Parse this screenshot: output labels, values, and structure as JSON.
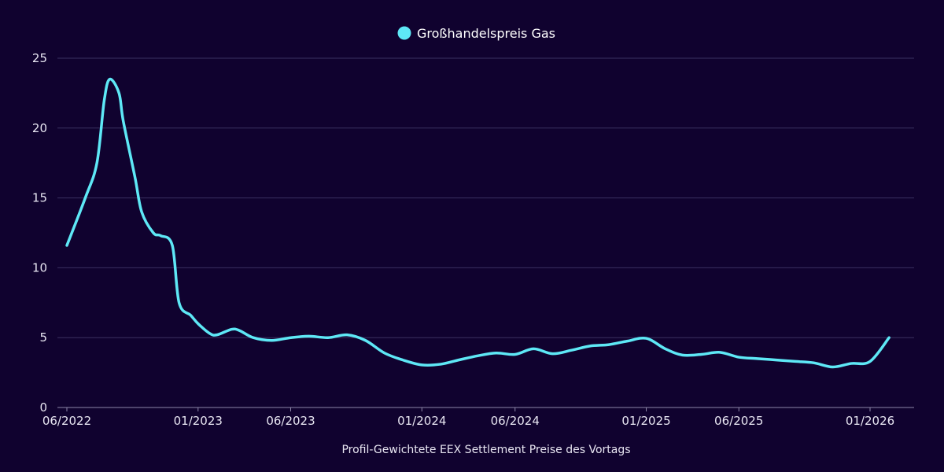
{
  "chart_data": {
    "type": "line",
    "title": "",
    "xlabel": "Profil-Gewichtete EEX Settlement Preise des Vortags",
    "ylabel": "",
    "ylim": [
      0,
      25
    ],
    "yticks": [
      0,
      5,
      10,
      15,
      20,
      25
    ],
    "xlim": [
      "2022-06",
      "2026-03"
    ],
    "xticks": [
      {
        "date": "2022-06",
        "label": "06/2022"
      },
      {
        "date": "2023-01",
        "label": "01/2023"
      },
      {
        "date": "2023-06",
        "label": "06/2023"
      },
      {
        "date": "2024-01",
        "label": "01/2024"
      },
      {
        "date": "2024-06",
        "label": "06/2024"
      },
      {
        "date": "2025-01",
        "label": "01/2025"
      },
      {
        "date": "2025-06",
        "label": "06/2025"
      },
      {
        "date": "2026-01",
        "label": "01/2026"
      }
    ],
    "grid": true,
    "legend_position": "top-center",
    "colors": {
      "background": "#10022f",
      "line": "#5ee8f6",
      "grid": "#3a3160",
      "axis": "#8d87a8",
      "text": "#e8e6f2"
    },
    "series": [
      {
        "name": "Großhandelspreis Gas",
        "color": "#5ee8f6",
        "points": [
          [
            "2022-06",
            11.6
          ],
          [
            "2022-07",
            15.0
          ],
          [
            "2022-07-20",
            17.5
          ],
          [
            "2022-08",
            22.0
          ],
          [
            "2022-08-10",
            23.5
          ],
          [
            "2022-08-25",
            22.5
          ],
          [
            "2022-09",
            20.5
          ],
          [
            "2022-09-20",
            16.5
          ],
          [
            "2022-10",
            14.0
          ],
          [
            "2022-10-20",
            12.5
          ],
          [
            "2022-11",
            12.3
          ],
          [
            "2022-11-20",
            11.6
          ],
          [
            "2022-12",
            7.5
          ],
          [
            "2022-12-20",
            6.6
          ],
          [
            "2023-01",
            6.0
          ],
          [
            "2023-01-20",
            5.3
          ],
          [
            "2023-02",
            5.2
          ],
          [
            "2023-02-25",
            5.6
          ],
          [
            "2023-03-10",
            5.5
          ],
          [
            "2023-04",
            5.0
          ],
          [
            "2023-05",
            4.8
          ],
          [
            "2023-06",
            5.0
          ],
          [
            "2023-07",
            5.1
          ],
          [
            "2023-08",
            5.0
          ],
          [
            "2023-09",
            5.2
          ],
          [
            "2023-10",
            4.8
          ],
          [
            "2023-11",
            3.9
          ],
          [
            "2023-12",
            3.4
          ],
          [
            "2024-01",
            3.05
          ],
          [
            "2024-02",
            3.1
          ],
          [
            "2024-03",
            3.4
          ],
          [
            "2024-04",
            3.7
          ],
          [
            "2024-05",
            3.9
          ],
          [
            "2024-06",
            3.8
          ],
          [
            "2024-07",
            4.2
          ],
          [
            "2024-08",
            3.85
          ],
          [
            "2024-09",
            4.1
          ],
          [
            "2024-10",
            4.4
          ],
          [
            "2024-11",
            4.5
          ],
          [
            "2024-12",
            4.75
          ],
          [
            "2025-01",
            4.95
          ],
          [
            "2025-02",
            4.2
          ],
          [
            "2025-03",
            3.75
          ],
          [
            "2025-04",
            3.8
          ],
          [
            "2025-05",
            3.95
          ],
          [
            "2025-06",
            3.6
          ],
          [
            "2025-07",
            3.5
          ],
          [
            "2025-08",
            3.4
          ],
          [
            "2025-09",
            3.3
          ],
          [
            "2025-10",
            3.2
          ],
          [
            "2025-11",
            2.9
          ],
          [
            "2025-12",
            3.15
          ],
          [
            "2026-01",
            3.3
          ],
          [
            "2026-02",
            5.0
          ]
        ]
      }
    ]
  }
}
